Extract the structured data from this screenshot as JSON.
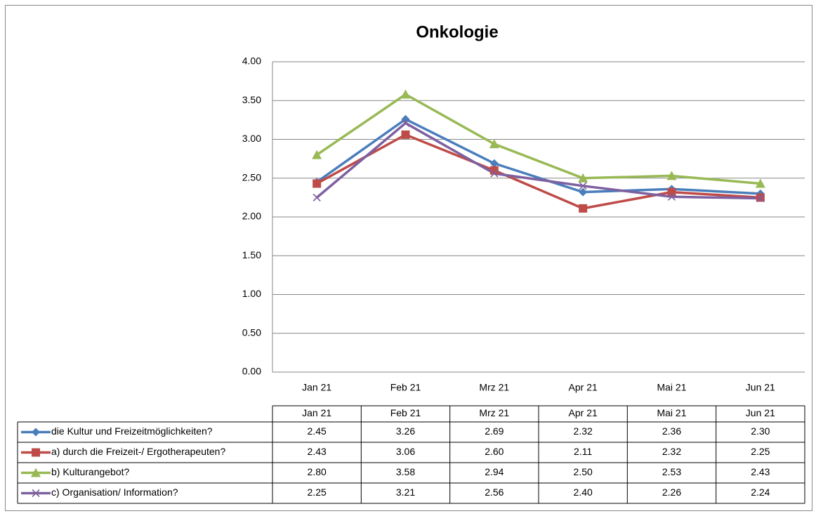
{
  "chart_data": {
    "type": "line",
    "title": "Onkologie",
    "categories": [
      "Jan 21",
      "Feb 21",
      "Mrz 21",
      "Apr 21",
      "Mai 21",
      "Jun 21"
    ],
    "ylim": [
      0,
      4
    ],
    "yticks": [
      {
        "value": 0,
        "label": "0.00"
      },
      {
        "value": 0.5,
        "label": "0.50"
      },
      {
        "value": 1,
        "label": "1.00"
      },
      {
        "value": 1.5,
        "label": "1.50"
      },
      {
        "value": 2,
        "label": "2.00"
      },
      {
        "value": 2.5,
        "label": "2.50"
      },
      {
        "value": 3,
        "label": "3.00"
      },
      {
        "value": 3.5,
        "label": "3.50"
      },
      {
        "value": 4,
        "label": "4.00"
      }
    ],
    "grid": true,
    "series": [
      {
        "name": "die Kultur und Freizeitmöglichkeiten?",
        "color": "#4a7ebb",
        "marker": "diamond",
        "values": [
          2.45,
          3.26,
          2.69,
          2.32,
          2.36,
          2.3
        ],
        "value_labels": [
          "2.45",
          "3.26",
          "2.69",
          "2.32",
          "2.36",
          "2.30"
        ]
      },
      {
        "name": "a) durch die Freizeit-/ Ergotherapeuten?",
        "color": "#be4b48",
        "marker": "square",
        "values": [
          2.43,
          3.06,
          2.6,
          2.11,
          2.32,
          2.25
        ],
        "value_labels": [
          "2.43",
          "3.06",
          "2.60",
          "2.11",
          "2.32",
          "2.25"
        ]
      },
      {
        "name": "b) Kulturangebot?",
        "color": "#98b954",
        "marker": "triangle",
        "values": [
          2.8,
          3.58,
          2.94,
          2.5,
          2.53,
          2.43
        ],
        "value_labels": [
          "2.80",
          "3.58",
          "2.94",
          "2.50",
          "2.53",
          "2.43"
        ]
      },
      {
        "name": "c) Organisation/ Information?",
        "color": "#7d60a0",
        "marker": "x",
        "values": [
          2.25,
          3.21,
          2.56,
          2.4,
          2.26,
          2.24
        ],
        "value_labels": [
          "2.25",
          "3.21",
          "2.56",
          "2.40",
          "2.26",
          "2.24"
        ]
      }
    ]
  }
}
